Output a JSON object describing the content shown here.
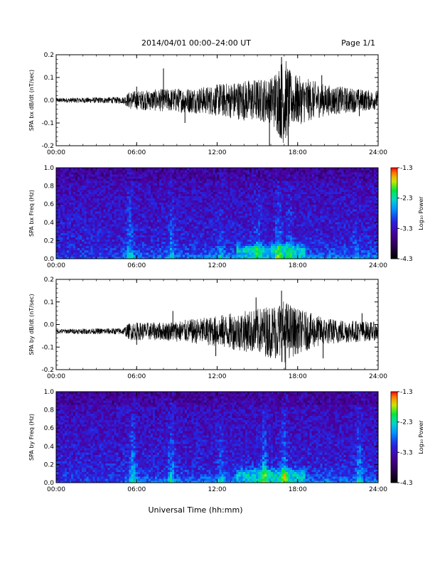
{
  "header": {
    "title": "2014/04/01  00:00–24:00 UT",
    "page": "Page 1/1"
  },
  "chart_data": [
    {
      "type": "line",
      "name": "bx-waveform",
      "ylabel": "SPA bx dB/dt (nT/sec)",
      "xlim": [
        0,
        24
      ],
      "ylim": [
        -0.2,
        0.2
      ],
      "yticks": [
        "0.2",
        "0.1",
        "0.0",
        "-0.1",
        "-0.2"
      ],
      "xticks": [
        "00:00",
        "06:00",
        "12:00",
        "18:00",
        "24:00"
      ],
      "baseline": 0.0,
      "envelope": [
        [
          0,
          0.01
        ],
        [
          5,
          0.015
        ],
        [
          5.5,
          0.04
        ],
        [
          8,
          0.05
        ],
        [
          11,
          0.06
        ],
        [
          14,
          0.09
        ],
        [
          16,
          0.1
        ],
        [
          17,
          0.2
        ],
        [
          17.5,
          0.12
        ],
        [
          20,
          0.07
        ],
        [
          24,
          0.04
        ]
      ],
      "spikes": [
        [
          6,
          0.06
        ],
        [
          8,
          0.14
        ],
        [
          9.6,
          -0.1
        ],
        [
          12.2,
          0.07
        ],
        [
          15.9,
          -0.2
        ],
        [
          16.8,
          0.19
        ],
        [
          17.3,
          -0.2
        ],
        [
          19.8,
          0.11
        ],
        [
          22.6,
          -0.07
        ]
      ]
    },
    {
      "type": "heatmap",
      "name": "bx-spectrogram",
      "ylabel": "SPA bx Freq (Hz)",
      "xlim": [
        0,
        24
      ],
      "ylim": [
        0,
        1.0
      ],
      "yticks": [
        "1.0",
        "0.8",
        "0.6",
        "0.4",
        "0.2",
        "0.0"
      ],
      "xticks": [
        "00:00",
        "06:00",
        "12:00",
        "18:00",
        "24:00"
      ],
      "colorbar": {
        "label": "Log₁₀ Power",
        "ticks": [
          "-1.3",
          "-2.3",
          "-3.3",
          "-4.3"
        ],
        "range": [
          -4.3,
          -1.3
        ]
      },
      "bursts": [
        [
          5.5,
          0.7
        ],
        [
          8.6,
          0.6
        ],
        [
          12.3,
          0.4
        ],
        [
          15.0,
          0.5
        ],
        [
          16.6,
          0.8
        ],
        [
          17.4,
          0.5
        ],
        [
          22.3,
          0.3
        ]
      ]
    },
    {
      "type": "line",
      "name": "by-waveform",
      "ylabel": "SPA by dB/dt (nT/sec)",
      "xlim": [
        0,
        24
      ],
      "ylim": [
        -0.2,
        0.2
      ],
      "yticks": [
        "0.2",
        "0.1",
        "0.0",
        "-0.1",
        "-0.2"
      ],
      "xticks": [
        "00:00",
        "06:00",
        "12:00",
        "18:00",
        "24:00"
      ],
      "baseline": -0.03,
      "envelope": [
        [
          0,
          0.01
        ],
        [
          5,
          0.015
        ],
        [
          5.5,
          0.04
        ],
        [
          8,
          0.04
        ],
        [
          11,
          0.06
        ],
        [
          13,
          0.08
        ],
        [
          15,
          0.1
        ],
        [
          17,
          0.14
        ],
        [
          18,
          0.1
        ],
        [
          20,
          0.06
        ],
        [
          24,
          0.04
        ]
      ],
      "spikes": [
        [
          6,
          -0.09
        ],
        [
          8.7,
          0.06
        ],
        [
          11.9,
          -0.14
        ],
        [
          14.9,
          0.12
        ],
        [
          16.8,
          0.15
        ],
        [
          17.1,
          -0.2
        ],
        [
          19.9,
          -0.15
        ],
        [
          22.8,
          0.05
        ]
      ]
    },
    {
      "type": "heatmap",
      "name": "by-spectrogram",
      "ylabel": "SPA by Freq (Hz)",
      "xlim": [
        0,
        24
      ],
      "ylim": [
        0,
        1.0
      ],
      "yticks": [
        "1.0",
        "0.8",
        "0.6",
        "0.4",
        "0.2",
        "0.0"
      ],
      "xticks": [
        "00:00",
        "06:00",
        "12:00",
        "18:00",
        "24:00"
      ],
      "colorbar": {
        "label": "Log₁₀ Power",
        "ticks": [
          "-1.3",
          "-2.3",
          "-3.3",
          "-4.3"
        ],
        "range": [
          -4.3,
          -1.3
        ]
      },
      "bursts": [
        [
          5.7,
          0.8
        ],
        [
          8.6,
          0.7
        ],
        [
          12.3,
          0.5
        ],
        [
          15.5,
          0.8
        ],
        [
          17.0,
          0.9
        ],
        [
          22.6,
          0.7
        ]
      ]
    }
  ],
  "xlabel": "Universal Time (hh:mm)"
}
